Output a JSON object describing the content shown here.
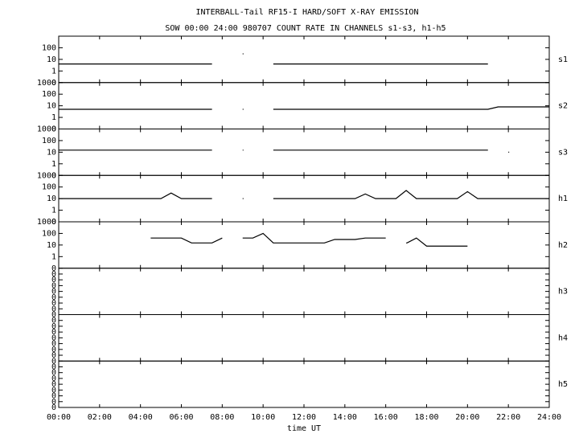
{
  "chart_data": {
    "type": "line",
    "title": "INTERBALL-Tail RF15-I HARD/SOFT X-RAY EMISSION",
    "subtitle": "SOW 00:00 24:00 980707  COUNT RATE IN CHANNELS s1-s3, h1-h5",
    "xlabel": "time UT",
    "xlim": [
      0,
      24
    ],
    "xticks": [
      {
        "value": 0,
        "label": "00:00"
      },
      {
        "value": 2,
        "label": "02:00"
      },
      {
        "value": 4,
        "label": "04:00"
      },
      {
        "value": 6,
        "label": "06:00"
      },
      {
        "value": 8,
        "label": "08:00"
      },
      {
        "value": 10,
        "label": "10:00"
      },
      {
        "value": 12,
        "label": "12:00"
      },
      {
        "value": 14,
        "label": "14:00"
      },
      {
        "value": 16,
        "label": "16:00"
      },
      {
        "value": 18,
        "label": "18:00"
      },
      {
        "value": 20,
        "label": "20:00"
      },
      {
        "value": 22,
        "label": "22:00"
      },
      {
        "value": 24,
        "label": "24:00"
      }
    ],
    "x": [
      0,
      0.5,
      1,
      1.5,
      2,
      2.5,
      3,
      3.5,
      4,
      4.5,
      5,
      5.5,
      6,
      6.5,
      7,
      7.5,
      8,
      8.5,
      9,
      9.5,
      10,
      10.5,
      11,
      11.5,
      12,
      12.5,
      13,
      13.5,
      14,
      14.5,
      15,
      15.5,
      16,
      16.5,
      17,
      17.5,
      18,
      18.5,
      19,
      19.5,
      20,
      20.5,
      21,
      21.5,
      22,
      22.5,
      23,
      23.5,
      24
    ],
    "color": "#000000",
    "panels": [
      {
        "name": "s1",
        "log": true,
        "ylim": [
          0.1,
          1000
        ],
        "yticks": [
          {
            "value": 0.1,
            "label": "0"
          },
          1,
          10,
          100
        ],
        "values": [
          4,
          4,
          4,
          4,
          4,
          4,
          4,
          4,
          4,
          4,
          4,
          4,
          4,
          4,
          4,
          4,
          null,
          null,
          30,
          null,
          null,
          4,
          4,
          4,
          4,
          4,
          4,
          4,
          4,
          4,
          4,
          4,
          4,
          4,
          4,
          4,
          4,
          4,
          4,
          4,
          4,
          4,
          4,
          null,
          null,
          null,
          null,
          null,
          null
        ]
      },
      {
        "name": "s2",
        "log": true,
        "ylim": [
          0.1,
          1000
        ],
        "yticks": [
          {
            "value": 0.1,
            "label": "0"
          },
          1,
          10,
          100,
          1000
        ],
        "values": [
          5,
          5,
          5,
          5,
          5,
          5,
          5,
          5,
          5,
          5,
          5,
          5,
          5,
          5,
          5,
          5,
          null,
          null,
          5,
          null,
          null,
          5,
          5,
          5,
          5,
          5,
          5,
          5,
          5,
          5,
          5,
          5,
          5,
          5,
          5,
          5,
          5,
          5,
          5,
          5,
          5,
          5,
          5,
          8,
          8,
          8,
          8,
          8,
          8
        ]
      },
      {
        "name": "s3",
        "log": true,
        "ylim": [
          0.1,
          1000
        ],
        "yticks": [
          {
            "value": 0.1,
            "label": "0"
          },
          1,
          10,
          100,
          1000
        ],
        "values": [
          15,
          15,
          15,
          15,
          15,
          15,
          15,
          15,
          15,
          15,
          15,
          15,
          15,
          15,
          15,
          15,
          null,
          null,
          15,
          null,
          null,
          15,
          15,
          15,
          15,
          15,
          15,
          15,
          15,
          15,
          15,
          15,
          15,
          15,
          15,
          15,
          15,
          15,
          15,
          15,
          15,
          15,
          15,
          null,
          10,
          null,
          null,
          null,
          null
        ]
      },
      {
        "name": "h1",
        "log": true,
        "ylim": [
          0.1,
          1000
        ],
        "yticks": [
          {
            "value": 0.1,
            "label": "0"
          },
          1,
          10,
          100,
          1000
        ],
        "values": [
          10,
          10,
          10,
          10,
          10,
          10,
          10,
          10,
          10,
          10,
          10,
          30,
          10,
          10,
          10,
          10,
          null,
          null,
          10,
          null,
          null,
          10,
          10,
          10,
          10,
          10,
          10,
          10,
          10,
          10,
          25,
          10,
          10,
          10,
          50,
          10,
          10,
          10,
          10,
          10,
          40,
          10,
          10,
          10,
          10,
          10,
          10,
          10,
          10
        ]
      },
      {
        "name": "h2",
        "log": true,
        "ylim": [
          0.1,
          1000
        ],
        "yticks": [
          {
            "value": 0.1,
            "label": "0"
          },
          1,
          10,
          100,
          1000
        ],
        "values": [
          null,
          null,
          null,
          null,
          null,
          null,
          null,
          null,
          null,
          40,
          40,
          40,
          40,
          15,
          15,
          15,
          40,
          null,
          40,
          40,
          100,
          15,
          15,
          15,
          15,
          15,
          15,
          30,
          30,
          30,
          40,
          40,
          40,
          null,
          15,
          40,
          8,
          8,
          8,
          8,
          8,
          null,
          null,
          null,
          null,
          null,
          null,
          null,
          null
        ]
      },
      {
        "name": "h3",
        "log": false,
        "ylim": [
          0,
          1
        ],
        "yticks": [
          {
            "value": 0,
            "label": "0"
          },
          {
            "value": 0.125,
            "label": "0"
          },
          {
            "value": 0.25,
            "label": "0"
          },
          {
            "value": 0.375,
            "label": "0"
          },
          {
            "value": 0.5,
            "label": "0"
          },
          {
            "value": 0.625,
            "label": "0"
          },
          {
            "value": 0.75,
            "label": "0"
          },
          {
            "value": 0.875,
            "label": "0"
          }
        ]
      },
      {
        "name": "h4",
        "log": false,
        "ylim": [
          0,
          1
        ],
        "yticks": [
          {
            "value": 0,
            "label": "0"
          },
          {
            "value": 0.125,
            "label": "0"
          },
          {
            "value": 0.25,
            "label": "0"
          },
          {
            "value": 0.375,
            "label": "0"
          },
          {
            "value": 0.5,
            "label": "0"
          },
          {
            "value": 0.625,
            "label": "0"
          },
          {
            "value": 0.75,
            "label": "0"
          },
          {
            "value": 0.875,
            "label": "0"
          }
        ]
      },
      {
        "name": "h5",
        "log": false,
        "ylim": [
          0,
          1
        ],
        "yticks": [
          {
            "value": 0,
            "label": "0"
          },
          {
            "value": 0.125,
            "label": "0"
          },
          {
            "value": 0.25,
            "label": "0"
          },
          {
            "value": 0.375,
            "label": "0"
          },
          {
            "value": 0.5,
            "label": "0"
          },
          {
            "value": 0.625,
            "label": "0"
          },
          {
            "value": 0.75,
            "label": "0"
          },
          {
            "value": 0.875,
            "label": "0"
          }
        ]
      }
    ]
  }
}
